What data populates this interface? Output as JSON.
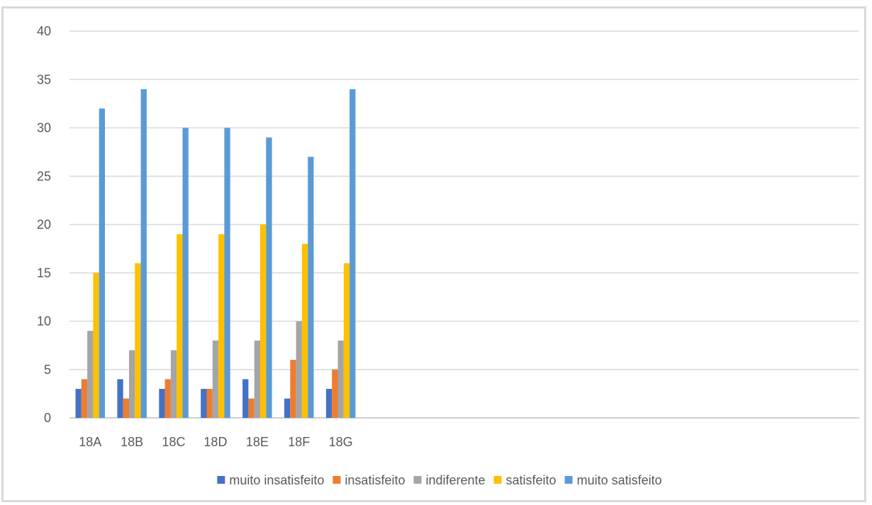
{
  "chart_data": {
    "type": "bar",
    "title": "",
    "xlabel": "",
    "ylabel": "",
    "ylim": [
      0,
      40
    ],
    "yticks": [
      0,
      5,
      10,
      15,
      20,
      25,
      30,
      35,
      40
    ],
    "grid": true,
    "legend_position": "bottom",
    "categories": [
      "18A",
      "18B",
      "18C",
      "18D",
      "18E",
      "18F",
      "18G"
    ],
    "series": [
      {
        "name": "muito insatisfeito",
        "color": "#4472c4",
        "values": [
          3,
          4,
          3,
          3,
          4,
          2,
          3
        ]
      },
      {
        "name": "insatisfeito",
        "color": "#ed7d31",
        "values": [
          4,
          2,
          4,
          3,
          2,
          6,
          5
        ]
      },
      {
        "name": "indiferente",
        "color": "#a5a5a5",
        "values": [
          9,
          7,
          7,
          8,
          8,
          10,
          8
        ]
      },
      {
        "name": "satisfeito",
        "color": "#ffc000",
        "values": [
          15,
          16,
          19,
          19,
          20,
          18,
          16
        ]
      },
      {
        "name": "muito satisfeito",
        "color": "#5b9bd5",
        "values": [
          32,
          34,
          30,
          30,
          29,
          27,
          34
        ]
      }
    ]
  }
}
